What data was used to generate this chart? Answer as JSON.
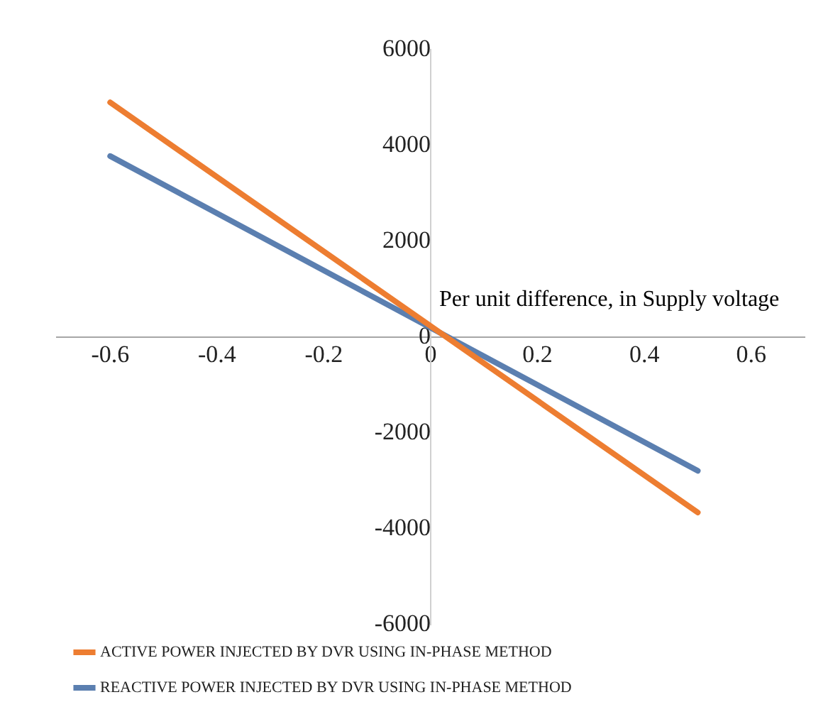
{
  "chart_data": {
    "type": "line",
    "xlabel": "Per unit difference, in Supply voltage",
    "x": [
      -0.6,
      0.5
    ],
    "series": [
      {
        "name": "ACTIVE POWER INJECTED BY DVR USING IN-PHASE METHOD",
        "color": "#ed7d31",
        "values": [
          4900,
          -3660
        ]
      },
      {
        "name": "REACTIVE POWER INJECTED BY DVR USING IN-PHASE METHOD",
        "color": "#5b7fb0",
        "values": [
          3780,
          -2790
        ]
      }
    ],
    "xlim": [
      -0.7,
      0.7
    ],
    "xticks": [
      -0.6,
      -0.4,
      -0.2,
      0,
      0.2,
      0.4,
      0.6
    ],
    "ylim": [
      -6000,
      6000
    ],
    "yticks": [
      -6000,
      -4000,
      -2000,
      0,
      2000,
      4000,
      6000
    ],
    "grid": false,
    "legend": "bottom",
    "marker": "none",
    "line_style": "solid"
  }
}
